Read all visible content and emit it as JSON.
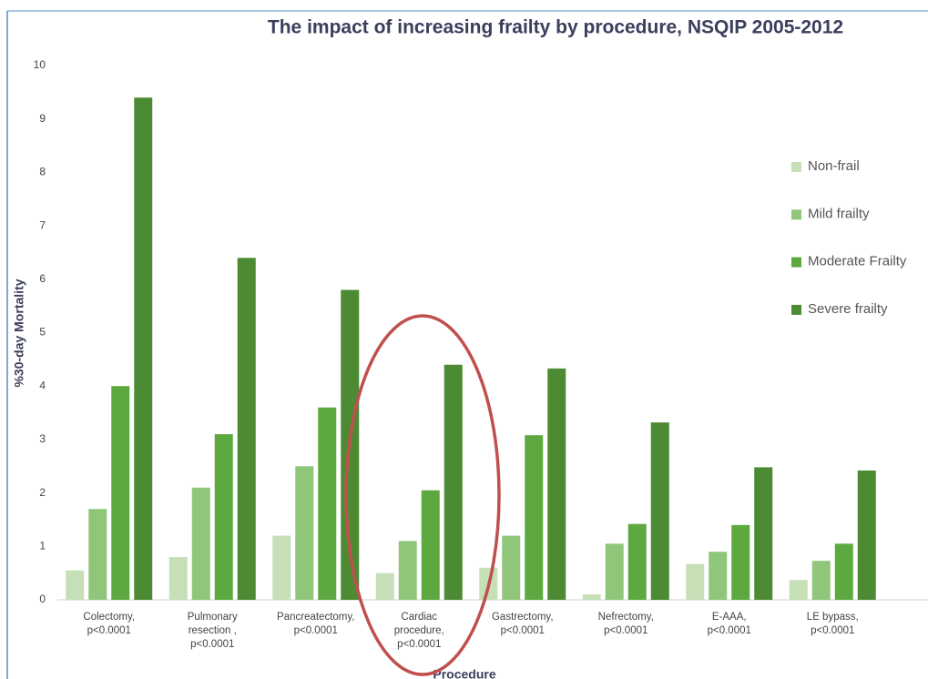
{
  "chart_data": {
    "type": "bar",
    "title": "The impact of increasing frailty by procedure, NSQIP 2005-2012",
    "y_label": "%30-day Mortality",
    "x_label": "Procedure",
    "categories": [
      "Colectomy,\np<0.0001",
      "Pulmonary\nresection ,\np<0.0001",
      "Pancreatectomy,\np<0.0001",
      "Cardiac\nprocedure,\np<0.0001",
      "Gastrectomy,\np<0.0001",
      "Nefrectomy,\np<0.0001",
      "E-AAA,\np<0.0001",
      "LE bypass,\np<0.0001"
    ],
    "series": [
      {
        "name": "Non-frail",
        "color": "#c6dfb6",
        "values": [
          0.55,
          0.8,
          1.2,
          0.5,
          0.6,
          0.1,
          0.67,
          0.37
        ]
      },
      {
        "name": "Mild frailty",
        "color": "#90c67a",
        "values": [
          1.7,
          2.1,
          2.5,
          1.1,
          1.2,
          1.05,
          0.9,
          0.73
        ]
      },
      {
        "name": "Moderate Frailty",
        "color": "#5da93f",
        "values": [
          4.0,
          3.1,
          3.6,
          2.05,
          3.08,
          1.42,
          1.4,
          1.05
        ]
      },
      {
        "name": "Severe frailty",
        "color": "#4c8a33",
        "values": [
          9.4,
          6.4,
          5.8,
          4.4,
          4.33,
          3.32,
          2.48,
          2.42
        ]
      }
    ],
    "ylim": [
      0,
      10
    ],
    "yticks": [
      0,
      1,
      2,
      3,
      4,
      5,
      6,
      7,
      8,
      9,
      10
    ],
    "grid": false,
    "legend": "right"
  }
}
